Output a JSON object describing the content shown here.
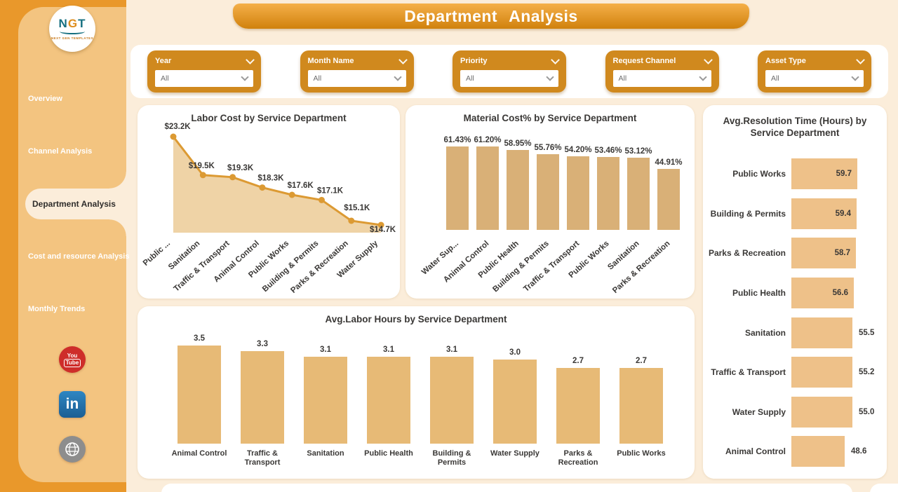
{
  "header": {
    "title": "Department Analysis"
  },
  "sidebar": {
    "logo": {
      "letters": [
        "N",
        "G",
        "T"
      ],
      "subtext": "NEXT GEN TEMPLATES"
    },
    "items": [
      {
        "label": "Overview",
        "active": false
      },
      {
        "label": "Channel Analysis",
        "active": false
      },
      {
        "label": "Department Analysis",
        "active": true
      },
      {
        "label": "Cost and resource Analysis",
        "active": false
      },
      {
        "label": "Monthly Trends",
        "active": false
      }
    ],
    "social": [
      "youtube",
      "linkedin",
      "website"
    ]
  },
  "filters": [
    {
      "label": "Year",
      "value": "All"
    },
    {
      "label": "Month Name",
      "value": "All"
    },
    {
      "label": "Priority",
      "value": "All"
    },
    {
      "label": "Request Channel",
      "value": "All"
    },
    {
      "label": "Asset Type",
      "value": "All"
    }
  ],
  "chart_data": [
    {
      "type": "area",
      "title": "Labor Cost by Service Department",
      "categories": [
        "Public ...",
        "Sanitation",
        "Traffic & Transport",
        "Animal Control",
        "Public Works",
        "Building & Permits",
        "Parks & Recreation",
        "Water Supply"
      ],
      "values": [
        23.2,
        19.5,
        19.3,
        18.3,
        17.6,
        17.1,
        15.1,
        14.7
      ],
      "labels": [
        "$23.2K",
        "$19.5K",
        "$19.3K",
        "$18.3K",
        "$17.6K",
        "$17.1K",
        "$15.1K",
        "$14.7K"
      ],
      "unit": "USD thousands",
      "ylim": [
        14,
        24
      ],
      "grid": false,
      "legend": "none"
    },
    {
      "type": "bar",
      "title": "Material Cost% by Service Department",
      "categories": [
        "Water Sup...",
        "Animal Control",
        "Public Health",
        "Building & Permits",
        "Traffic & Transport",
        "Public Works",
        "Sanitation",
        "Parks & Recreation"
      ],
      "values": [
        61.43,
        61.2,
        58.95,
        55.76,
        54.2,
        53.46,
        53.12,
        44.91
      ],
      "labels": [
        "61.43%",
        "61.20%",
        "58.95%",
        "55.76%",
        "54.20%",
        "53.46%",
        "53.12%",
        "44.91%"
      ],
      "unit": "percent",
      "ylim": [
        0,
        62
      ],
      "grid": false,
      "legend": "none"
    },
    {
      "type": "bar",
      "orientation": "horizontal",
      "title": "Avg.Resolution Time (Hours) by Service Department",
      "categories": [
        "Public Works",
        "Building & Permits",
        "Parks & Recreation",
        "Public Health",
        "Sanitation",
        "Traffic & Transport",
        "Water Supply",
        "Animal Control"
      ],
      "values": [
        59.7,
        59.4,
        58.7,
        56.6,
        55.5,
        55.2,
        55.0,
        48.6
      ],
      "labels": [
        "59.7",
        "59.4",
        "58.7",
        "56.6",
        "55.5",
        "55.2",
        "55.0",
        "48.6"
      ],
      "unit": "hours",
      "xlim": [
        0,
        62
      ],
      "grid": false,
      "legend": "none"
    },
    {
      "type": "bar",
      "title": "Avg.Labor Hours by Service Department",
      "categories": [
        "Animal Control",
        "Traffic & Transport",
        "Sanitation",
        "Public Health",
        "Building & Permits",
        "Water Supply",
        "Parks & Recreation",
        "Public Works"
      ],
      "values": [
        3.5,
        3.3,
        3.1,
        3.1,
        3.1,
        3.0,
        2.7,
        2.7
      ],
      "labels": [
        "3.5",
        "3.3",
        "3.1",
        "3.1",
        "3.1",
        "3.0",
        "2.7",
        "2.7"
      ],
      "unit": "hours",
      "ylim": [
        0,
        3.6
      ],
      "grid": false,
      "legend": "none"
    }
  ],
  "colors": {
    "sidebar_outer": "#E9982B",
    "sidebar_panel": "#F3C480",
    "background_cream": "#FBEDDA",
    "filter_orange": "#D0891E",
    "banner_top": "#F5B049",
    "banner_bottom": "#D0810D",
    "bar_material": "#D9B077",
    "bar_hours": "#E7BA76",
    "bar_resolution": "#EEC189",
    "line_orange": "#DC9A33",
    "area_fill": "#EFD3A6",
    "text_dark": "#3A3836",
    "youtube_red": "#CE2D2A",
    "linkedin_blue": "#2573AE",
    "website_gray": "#8D8D8D"
  }
}
